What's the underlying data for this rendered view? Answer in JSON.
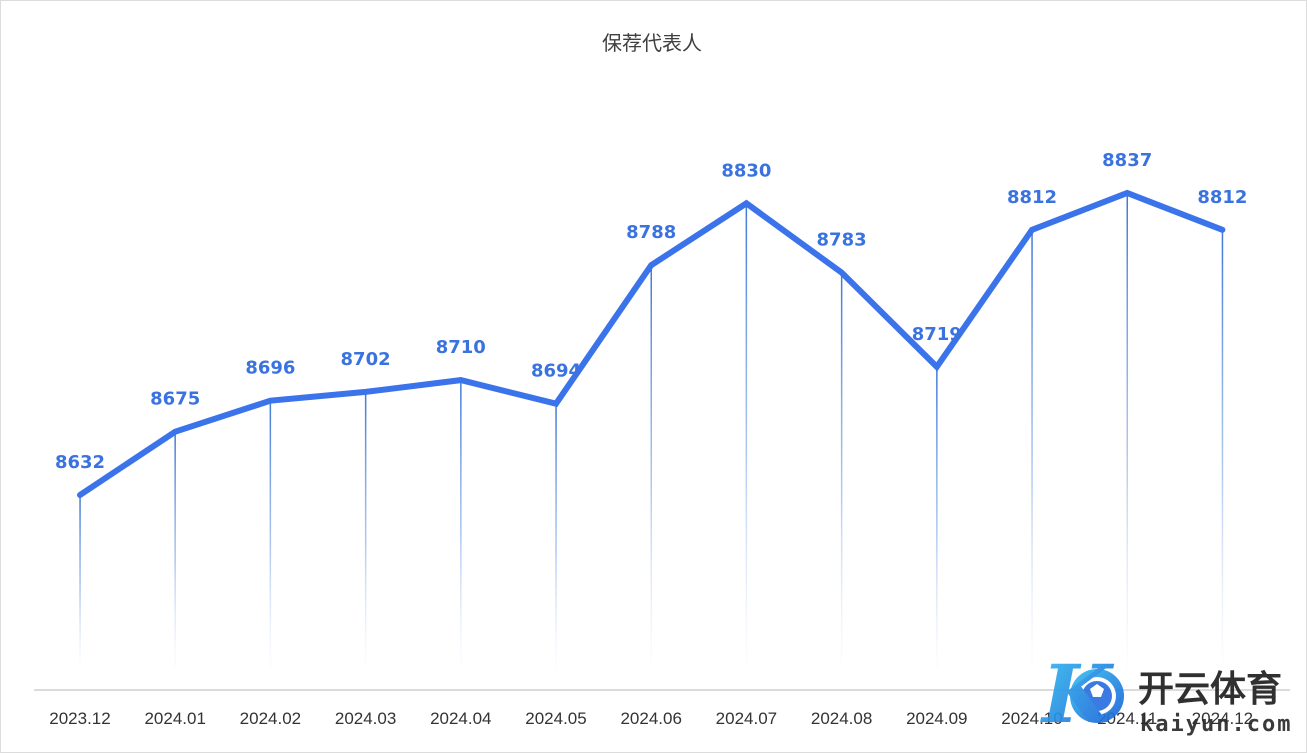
{
  "chart_data": {
    "type": "line",
    "title": "保荐代表人",
    "xlabel": "",
    "ylabel": "",
    "categories": [
      "2023.12",
      "2024.01",
      "2024.02",
      "2024.03",
      "2024.04",
      "2024.05",
      "2024.06",
      "2024.07",
      "2024.08",
      "2024.09",
      "2024.10",
      "2024.11",
      "2024.12"
    ],
    "series": [
      {
        "values": [
          8632,
          8675,
          8696,
          8702,
          8710,
          8694,
          8788,
          8830,
          8783,
          8719,
          8812,
          8837,
          8812
        ]
      }
    ],
    "grid": false,
    "legend": "none",
    "data_labels": true,
    "line_color": "#3a73ea",
    "drop_line_color": "#4a7fd0"
  },
  "watermark": {
    "logo_letter": "K",
    "text": "开云体育",
    "subtext": "kaiyun.com"
  }
}
